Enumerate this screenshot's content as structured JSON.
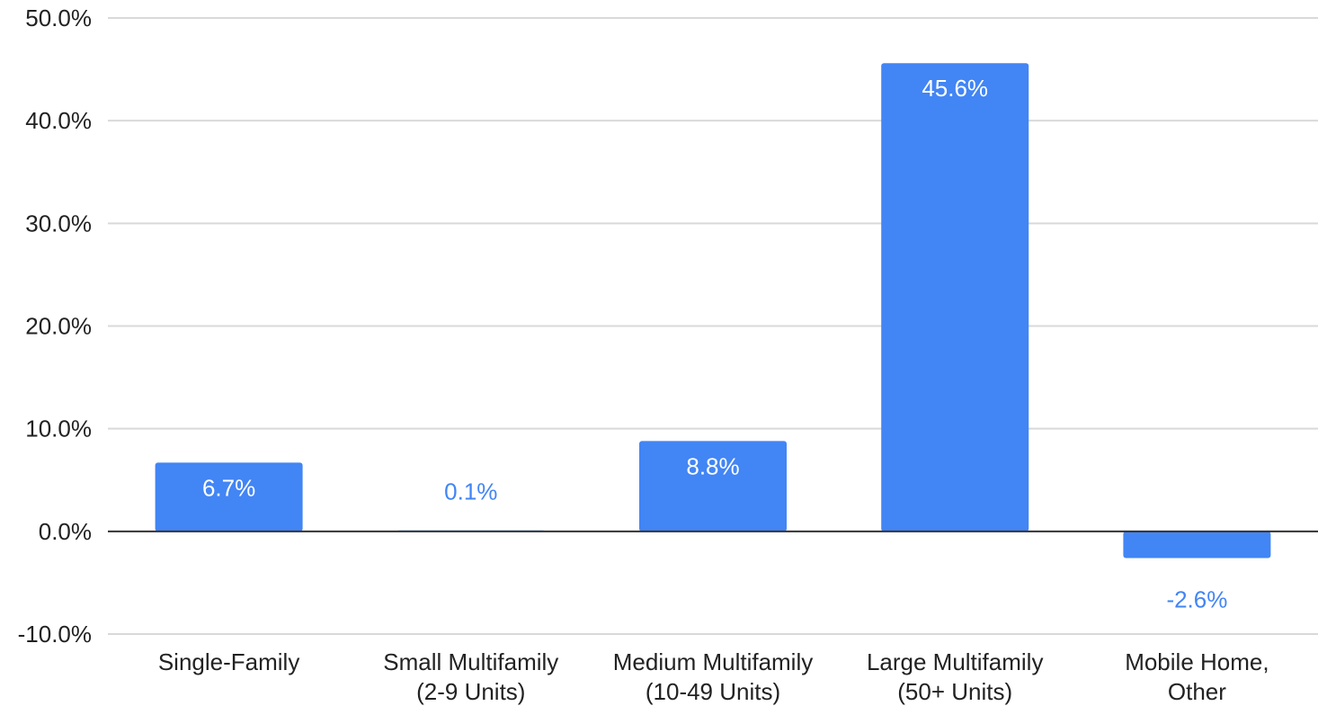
{
  "chart_data": {
    "type": "bar",
    "categories": [
      [
        "Single-Family"
      ],
      [
        "Small Multifamily",
        "(2-9 Units)"
      ],
      [
        "Medium Multifamily",
        "(10-49 Units)"
      ],
      [
        "Large Multifamily",
        "(50+ Units)"
      ],
      [
        "Mobile Home,",
        "Other"
      ]
    ],
    "values": [
      6.7,
      0.1,
      8.8,
      45.6,
      -2.6
    ],
    "value_labels": [
      "6.7%",
      "0.1%",
      "8.8%",
      "45.6%",
      "-2.6%"
    ],
    "y_ticks": [
      -10,
      0,
      10,
      20,
      30,
      40,
      50
    ],
    "y_tick_labels": [
      "-10.0%",
      "0.0%",
      "10.0%",
      "20.0%",
      "30.0%",
      "40.0%",
      "50.0%"
    ],
    "ylim": [
      -10,
      50
    ],
    "title": "",
    "xlabel": "",
    "ylabel": "",
    "grid": true,
    "colors": {
      "bar": "#4285f4",
      "grid": "#d9d9d9",
      "zero_line": "#333333",
      "text": "#222222",
      "label_inside": "#ffffff",
      "label_outside": "#4285f4"
    }
  }
}
